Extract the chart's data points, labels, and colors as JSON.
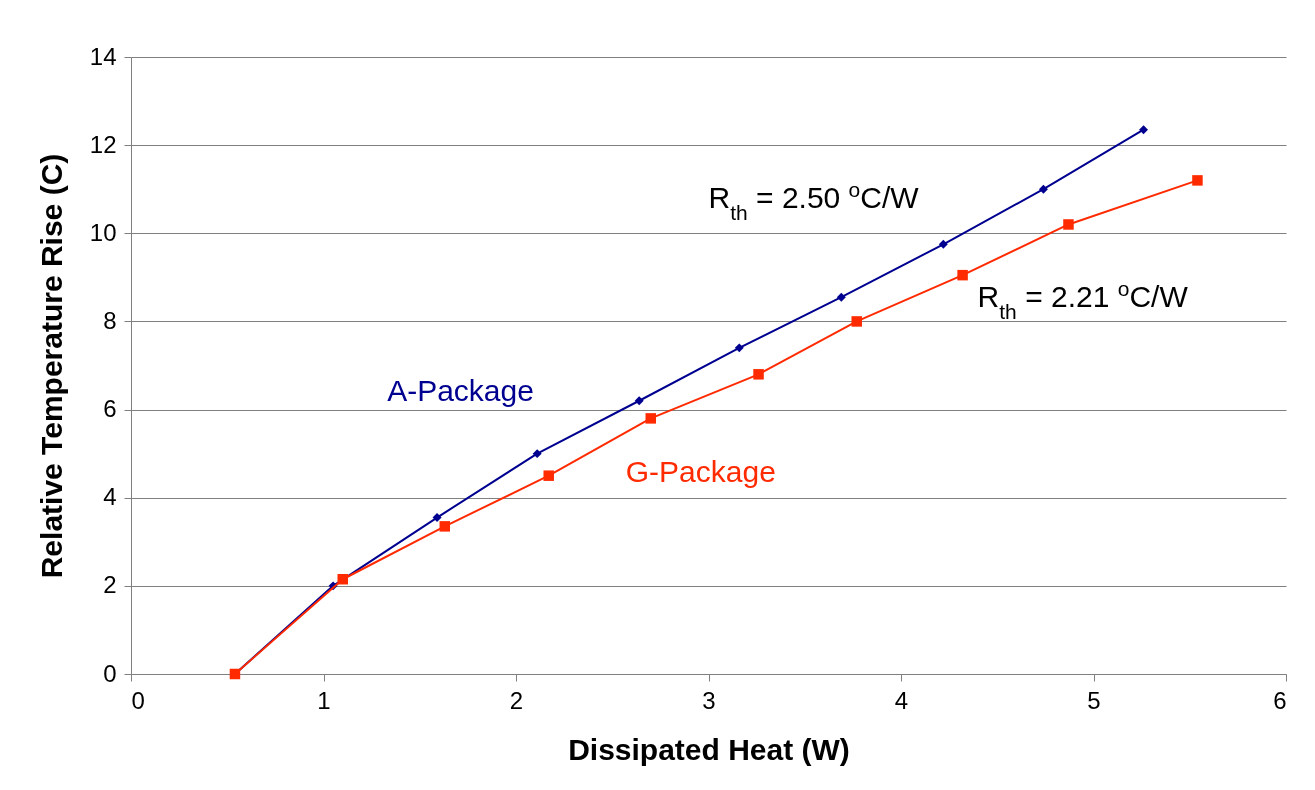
{
  "chart_data": {
    "type": "line",
    "xlabel": "Dissipated Heat (W)",
    "ylabel": "Relative Temperature Rise (C)",
    "xlim": [
      0,
      6
    ],
    "xticks": [
      0,
      1,
      2,
      3,
      4,
      5,
      6
    ],
    "ylim": [
      0,
      14
    ],
    "yticks": [
      0,
      2,
      4,
      6,
      8,
      10,
      12,
      14
    ],
    "grid": "y",
    "legend": false,
    "line_style": "solid",
    "series": [
      {
        "name": "A-Package",
        "color": "#000090",
        "marker": "diamond",
        "x": [
          0.54,
          1.05,
          1.59,
          2.11,
          2.64,
          3.16,
          3.69,
          4.22,
          4.74,
          5.26
        ],
        "values": [
          0,
          2.0,
          3.55,
          5.0,
          6.2,
          7.4,
          8.55,
          9.75,
          11.0,
          12.35
        ]
      },
      {
        "name": "G-Package",
        "color": "#ff2a00",
        "marker": "square",
        "x": [
          0.54,
          1.1,
          1.63,
          2.17,
          2.7,
          3.26,
          3.77,
          4.32,
          4.87,
          5.54
        ],
        "values": [
          0,
          2.15,
          3.35,
          4.5,
          5.8,
          6.8,
          8.0,
          9.05,
          10.2,
          11.2
        ]
      }
    ],
    "annotations": [
      "R$_{th}$ = 2.50 $^{o}$C/W",
      "R$_{th}$ = 2.21 $^{o}$C/W"
    ]
  }
}
